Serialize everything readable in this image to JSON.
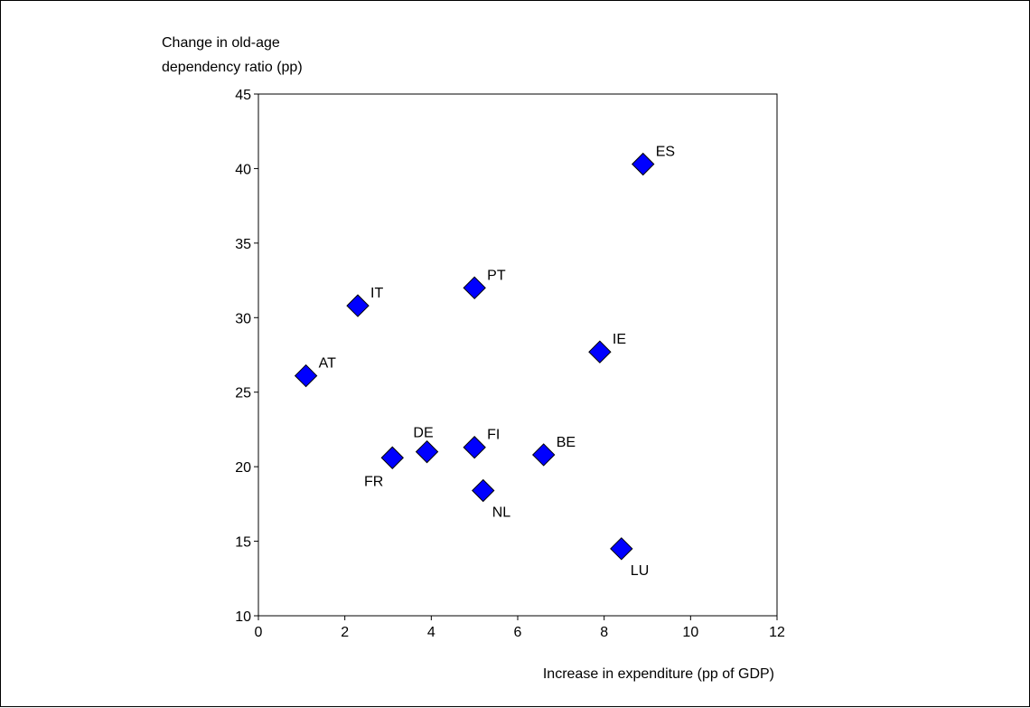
{
  "chart_data": {
    "type": "scatter",
    "title": "",
    "ylabel_lines": [
      "Change in old-age",
      "dependency ratio (pp)"
    ],
    "xlabel": "Increase in expenditure (pp of GDP)",
    "xlim": [
      0,
      12
    ],
    "ylim": [
      10,
      45
    ],
    "xticks": [
      "0",
      "2",
      "4",
      "6",
      "8",
      "10",
      "12"
    ],
    "yticks": [
      "10",
      "15",
      "20",
      "25",
      "30",
      "35",
      "40",
      "45"
    ],
    "grid": false,
    "marker": "diamond",
    "marker_color": "#0000ff",
    "points": [
      {
        "label": "AT",
        "x": 1.1,
        "y": 26.1,
        "label_pos": "upper-right"
      },
      {
        "label": "IT",
        "x": 2.3,
        "y": 30.8,
        "label_pos": "upper-right"
      },
      {
        "label": "FR",
        "x": 3.1,
        "y": 20.6,
        "label_pos": "lower-left"
      },
      {
        "label": "DE",
        "x": 3.9,
        "y": 21.0,
        "label_pos": "upper-left"
      },
      {
        "label": "PT",
        "x": 5.0,
        "y": 32.0,
        "label_pos": "upper-right"
      },
      {
        "label": "FI",
        "x": 5.0,
        "y": 21.3,
        "label_pos": "upper-right"
      },
      {
        "label": "NL",
        "x": 5.2,
        "y": 18.4,
        "label_pos": "lower-right"
      },
      {
        "label": "BE",
        "x": 6.6,
        "y": 20.8,
        "label_pos": "upper-right"
      },
      {
        "label": "IE",
        "x": 7.9,
        "y": 27.7,
        "label_pos": "upper-right"
      },
      {
        "label": "LU",
        "x": 8.4,
        "y": 14.5,
        "label_pos": "lower-right"
      },
      {
        "label": "ES",
        "x": 8.9,
        "y": 40.3,
        "label_pos": "upper-right"
      }
    ]
  }
}
